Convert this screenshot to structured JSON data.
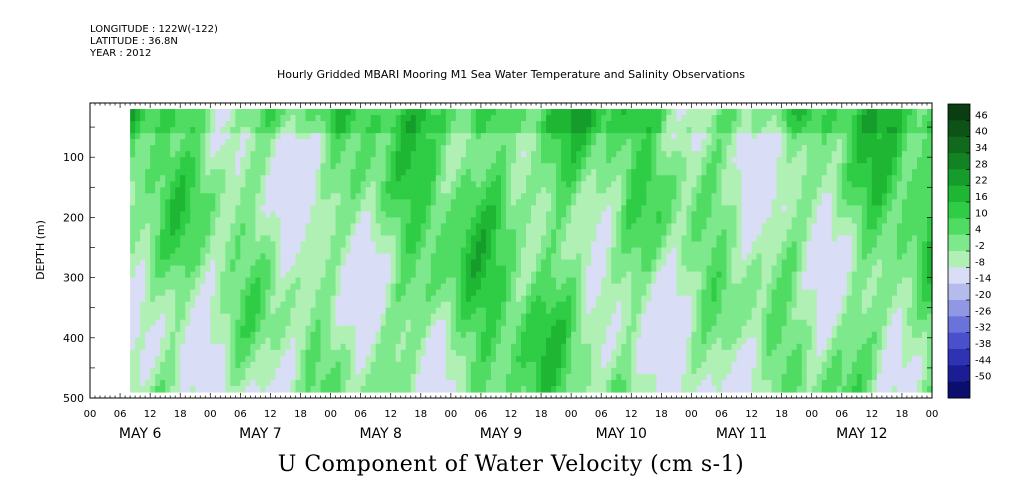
{
  "header": {
    "longitude": "LONGITUDE : 122W(-122)",
    "latitude": "LATITUDE : 36.8N",
    "year": "YEAR : 2012"
  },
  "chart_data": {
    "type": "heatmap",
    "title": "Hourly Gridded MBARI Mooring M1 Sea Water Temperature and Salinity Observations",
    "variable_label": "U Component of Water Velocity (cm s-1)",
    "ylabel": "DEPTH (m)",
    "y_axis": {
      "range": [
        10,
        500
      ],
      "ticks": [
        100,
        200,
        300,
        400,
        500
      ],
      "inverted": true
    },
    "x_axis": {
      "hour_ticks": [
        "00",
        "06",
        "12",
        "18",
        "00",
        "06",
        "12",
        "18",
        "00",
        "06",
        "12",
        "18",
        "00",
        "06",
        "12",
        "18",
        "00",
        "06",
        "12",
        "18",
        "00",
        "06",
        "12",
        "18",
        "00",
        "06",
        "12",
        "18",
        "00"
      ],
      "day_labels": [
        "MAY  6",
        "MAY  7",
        "MAY  8",
        "MAY  9",
        "MAY 10",
        "MAY 11",
        "MAY 12"
      ],
      "range": [
        "2012-05-06 00:00",
        "2012-05-13 00:00"
      ]
    },
    "data_start": "2012-05-06 08:00",
    "colorbar": {
      "labels": [
        "46",
        "40",
        "34",
        "28",
        "22",
        "16",
        "10",
        "4",
        "-2",
        "-8",
        "-14",
        "-20",
        "-26",
        "-32",
        "-38",
        "-44",
        "-50"
      ],
      "levels": [
        46,
        40,
        34,
        28,
        22,
        16,
        10,
        4,
        -2,
        -8,
        -14,
        -20,
        -26,
        -32,
        -38,
        -44,
        -50
      ],
      "colors_high_to_low": [
        "#0b3d12",
        "#0d5216",
        "#10691c",
        "#128223",
        "#169c2b",
        "#1eb633",
        "#2fcc45",
        "#50dc62",
        "#7ee88c",
        "#b0f0b4",
        "#d9ddf5",
        "#b6bbee",
        "#9098e6",
        "#6a72db",
        "#4a50cc",
        "#2e33b4",
        "#1a1d94",
        "#0c0e6e"
      ]
    }
  }
}
